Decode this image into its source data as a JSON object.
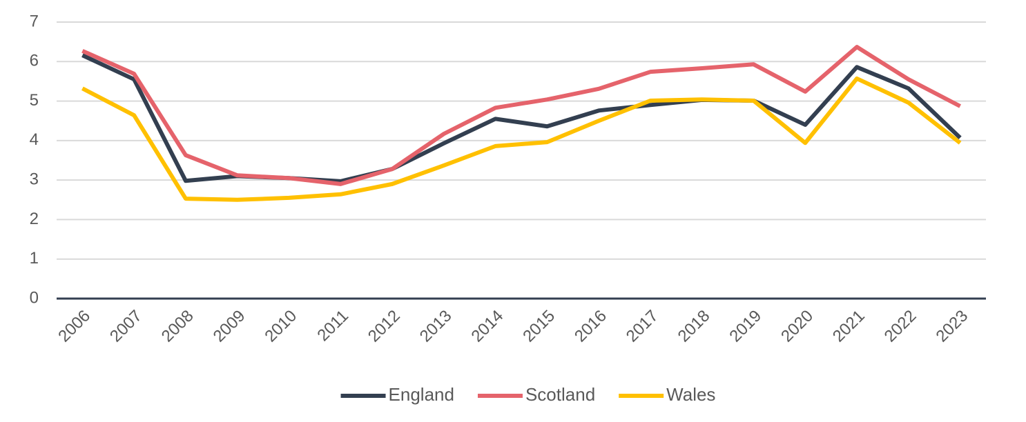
{
  "chart_data": {
    "type": "line",
    "categories": [
      "2006",
      "2007",
      "2008",
      "2009",
      "2010",
      "2011",
      "2012",
      "2013",
      "2014",
      "2015",
      "2016",
      "2017",
      "2018",
      "2019",
      "2020",
      "2021",
      "2022",
      "2023"
    ],
    "series": [
      {
        "name": "England",
        "color": "#333f50",
        "values": [
          6.16,
          5.55,
          2.98,
          3.1,
          3.05,
          2.97,
          3.28,
          3.93,
          4.55,
          4.36,
          4.76,
          4.9,
          5.03,
          5.01,
          4.4,
          5.86,
          5.32,
          4.07
        ]
      },
      {
        "name": "Scotland",
        "color": "#e5636b",
        "values": [
          6.27,
          5.69,
          3.63,
          3.12,
          3.05,
          2.9,
          3.28,
          4.17,
          4.83,
          5.04,
          5.31,
          5.74,
          5.83,
          5.93,
          5.24,
          6.37,
          5.55,
          4.87
        ]
      },
      {
        "name": "Wales",
        "color": "#ffc000",
        "values": [
          5.32,
          4.64,
          2.53,
          2.5,
          2.55,
          2.64,
          2.9,
          3.37,
          3.86,
          3.96,
          4.5,
          5.01,
          5.04,
          5.01,
          3.94,
          5.57,
          4.96,
          3.94
        ]
      }
    ],
    "ylim": [
      0,
      7
    ],
    "yticks": [
      0,
      1,
      2,
      3,
      4,
      5,
      6,
      7
    ],
    "grid": true,
    "legend": "bottom"
  }
}
